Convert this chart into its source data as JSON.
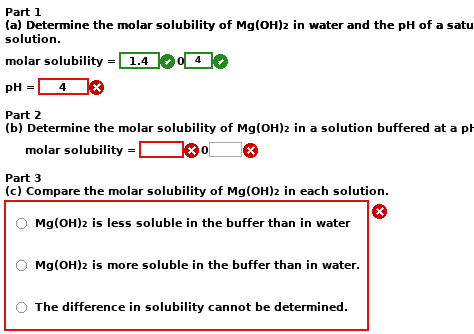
{
  "bg_color": "#ffffff",
  "red": "#dd1111",
  "dark_red": "#cc0000",
  "green": "#228B22",
  "gray": "#999999"
}
